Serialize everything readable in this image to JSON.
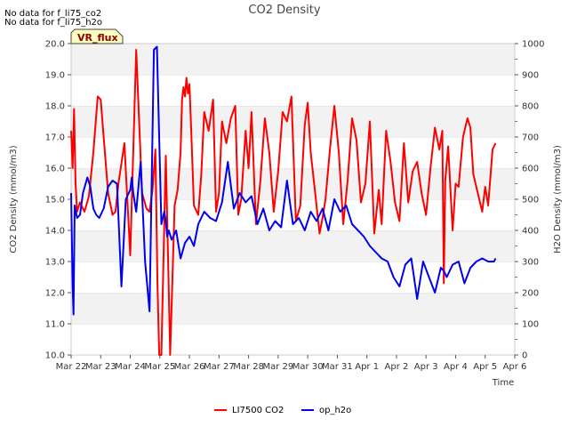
{
  "chart_data": {
    "type": "line",
    "title": "CO2 Density",
    "xlabel": "Time",
    "ylabel_left": "CO2 Density (mmol/m3)",
    "ylabel_right": "H2O Density (mmol/m3)",
    "no_data_notes": [
      "No data for f_li75_co2",
      "No data for f_li75_h2o"
    ],
    "flag_label": "VR_flux",
    "x_ticks": [
      "Mar 22",
      "Mar 23",
      "Mar 24",
      "Mar 25",
      "Mar 26",
      "Mar 27",
      "Mar 28",
      "Mar 29",
      "Mar 30",
      "Mar 31",
      "Apr 1",
      "Apr 2",
      "Apr 3",
      "Apr 4",
      "Apr 5",
      "Apr 6"
    ],
    "x_range_days": [
      0,
      15
    ],
    "ylim_left": [
      10.0,
      20.0
    ],
    "yticks_left": [
      "10.0",
      "11.0",
      "12.0",
      "13.0",
      "14.0",
      "15.0",
      "16.0",
      "17.0",
      "18.0",
      "19.0",
      "20.0"
    ],
    "ylim_right": [
      0,
      1000
    ],
    "yticks_right": [
      "0",
      "100",
      "200",
      "300",
      "400",
      "500",
      "600",
      "700",
      "800",
      "900",
      "1000"
    ],
    "grid": "horizontal-bands",
    "legend_position": "bottom-center",
    "series": [
      {
        "name": "LI7500 CO2",
        "axis": "left",
        "color": "#ff0000",
        "x": [
          0.0,
          0.05,
          0.1,
          0.15,
          0.2,
          0.3,
          0.45,
          0.6,
          0.75,
          0.9,
          1.0,
          1.1,
          1.25,
          1.4,
          1.5,
          1.6,
          1.8,
          2.0,
          2.2,
          2.4,
          2.55,
          2.65,
          2.75,
          2.85,
          2.92,
          2.98,
          3.05,
          3.2,
          3.35,
          3.5,
          3.6,
          3.7,
          3.75,
          3.8,
          3.85,
          3.9,
          3.95,
          4.0,
          4.05,
          4.15,
          4.3,
          4.4,
          4.5,
          4.65,
          4.8,
          4.9,
          5.0,
          5.1,
          5.25,
          5.4,
          5.55,
          5.65,
          5.75,
          5.9,
          6.0,
          6.1,
          6.25,
          6.4,
          6.55,
          6.7,
          6.85,
          7.0,
          7.15,
          7.3,
          7.45,
          7.6,
          7.75,
          7.9,
          8.0,
          8.1,
          8.25,
          8.4,
          8.5,
          8.6,
          8.75,
          8.9,
          9.05,
          9.2,
          9.35,
          9.5,
          9.65,
          9.8,
          9.95,
          10.1,
          10.25,
          10.4,
          10.5,
          10.65,
          10.8,
          10.95,
          11.1,
          11.25,
          11.4,
          11.55,
          11.7,
          11.85,
          12.0,
          12.15,
          12.3,
          12.45,
          12.55,
          12.6,
          12.65,
          12.75,
          12.9,
          13.0,
          13.1,
          13.25,
          13.4,
          13.5,
          13.6,
          13.75,
          13.9,
          14.0,
          14.1,
          14.25,
          14.35
        ],
        "y": [
          17.2,
          16.0,
          17.9,
          15.5,
          14.6,
          14.9,
          14.6,
          15.1,
          16.5,
          18.3,
          18.2,
          17.0,
          15.2,
          14.5,
          14.6,
          15.5,
          16.8,
          13.2,
          19.8,
          15.2,
          14.7,
          14.6,
          15.3,
          16.6,
          12.3,
          10.0,
          10.0,
          16.4,
          10.0,
          14.8,
          15.3,
          16.5,
          18.2,
          18.6,
          18.3,
          18.9,
          18.4,
          18.7,
          17.5,
          14.8,
          14.5,
          15.8,
          17.8,
          17.2,
          18.2,
          14.6,
          15.2,
          17.5,
          16.8,
          17.6,
          18.0,
          14.5,
          15.0,
          17.2,
          16.0,
          17.8,
          14.2,
          15.6,
          17.6,
          16.5,
          14.6,
          15.9,
          17.8,
          17.5,
          18.3,
          14.3,
          14.8,
          17.4,
          18.1,
          16.5,
          15.2,
          13.9,
          14.4,
          15.0,
          16.6,
          18.0,
          16.5,
          14.2,
          15.6,
          17.6,
          16.9,
          14.9,
          15.5,
          17.5,
          13.9,
          15.3,
          14.2,
          17.2,
          16.2,
          14.9,
          14.3,
          16.8,
          14.9,
          15.9,
          16.2,
          15.2,
          14.5,
          16.0,
          17.3,
          16.6,
          17.2,
          12.3,
          15.6,
          16.7,
          14.0,
          15.5,
          15.4,
          17.0,
          17.6,
          17.3,
          15.8,
          15.2,
          14.6,
          15.4,
          14.8,
          16.6,
          16.8
        ]
      },
      {
        "name": "op_h2o",
        "axis": "right",
        "color": "#0000ee",
        "x": [
          0.0,
          0.05,
          0.08,
          0.12,
          0.2,
          0.3,
          0.4,
          0.55,
          0.65,
          0.75,
          0.85,
          0.95,
          1.1,
          1.25,
          1.4,
          1.55,
          1.7,
          1.85,
          2.0,
          2.05,
          2.1,
          2.2,
          2.35,
          2.5,
          2.65,
          2.8,
          2.9,
          3.05,
          3.1,
          3.15,
          3.2,
          3.25,
          3.3,
          3.4,
          3.55,
          3.7,
          3.85,
          4.0,
          4.15,
          4.3,
          4.5,
          4.7,
          4.9,
          5.1,
          5.3,
          5.5,
          5.7,
          5.9,
          6.1,
          6.3,
          6.5,
          6.7,
          6.9,
          7.1,
          7.3,
          7.5,
          7.7,
          7.9,
          8.1,
          8.3,
          8.5,
          8.7,
          8.9,
          9.1,
          9.3,
          9.5,
          9.7,
          9.9,
          10.1,
          10.3,
          10.5,
          10.7,
          10.9,
          11.1,
          11.3,
          11.5,
          11.7,
          11.9,
          12.1,
          12.3,
          12.5,
          12.6,
          12.7,
          12.9,
          13.1,
          13.3,
          13.5,
          13.7,
          13.9,
          14.1,
          14.3,
          14.35
        ],
        "y": [
          520,
          220,
          130,
          480,
          440,
          450,
          520,
          570,
          540,
          470,
          450,
          440,
          470,
          540,
          560,
          550,
          220,
          500,
          530,
          570,
          520,
          460,
          620,
          300,
          140,
          980,
          990,
          420,
          440,
          460,
          430,
          380,
          400,
          370,
          400,
          310,
          360,
          380,
          350,
          420,
          460,
          440,
          430,
          490,
          620,
          470,
          520,
          490,
          510,
          420,
          470,
          400,
          430,
          410,
          560,
          420,
          440,
          400,
          460,
          430,
          470,
          400,
          500,
          460,
          480,
          420,
          400,
          380,
          350,
          330,
          310,
          300,
          250,
          220,
          290,
          310,
          180,
          300,
          250,
          200,
          280,
          270,
          250,
          290,
          300,
          230,
          280,
          300,
          310,
          300,
          300,
          310
        ]
      }
    ]
  }
}
